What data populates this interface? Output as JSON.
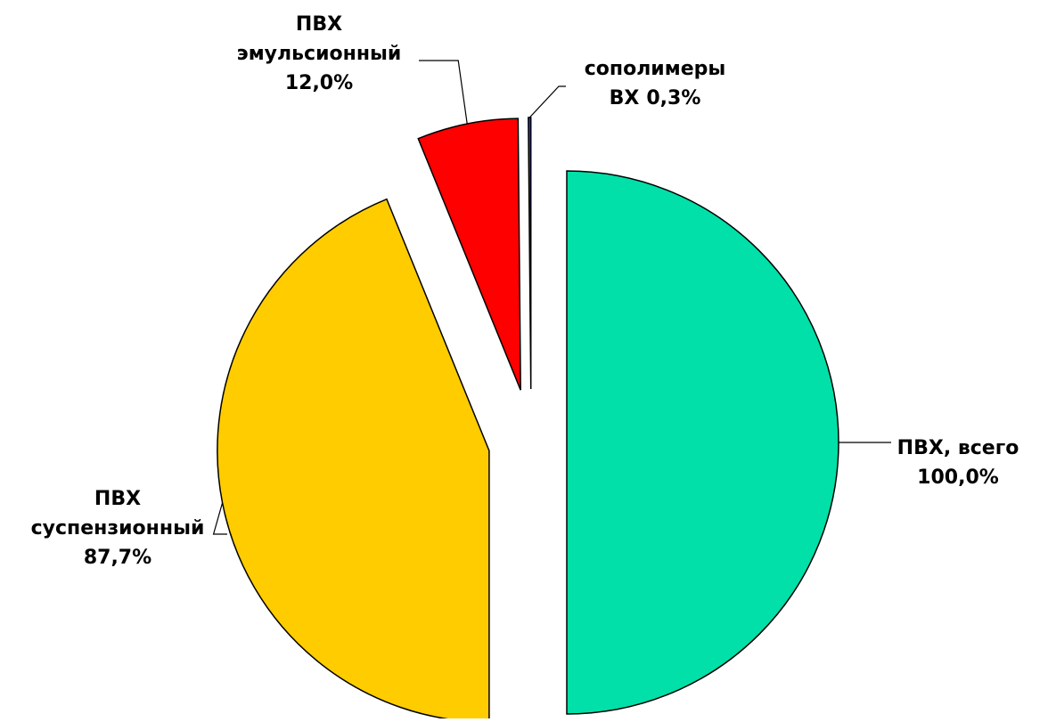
{
  "chart_data": {
    "type": "pie",
    "categories": [
      "ПВХ, всего",
      "ПВХ суспензионный",
      "ПВХ эмульсионный",
      "сополимеры ВХ"
    ],
    "values": [
      100.0,
      87.7,
      12.0,
      0.3
    ],
    "value_labels": [
      "100,0%",
      "87,7%",
      "12,0%",
      "0,3%"
    ],
    "colors": [
      "#00e0a8",
      "#ffcc00",
      "#ff0000",
      "#3333cc"
    ]
  }
}
